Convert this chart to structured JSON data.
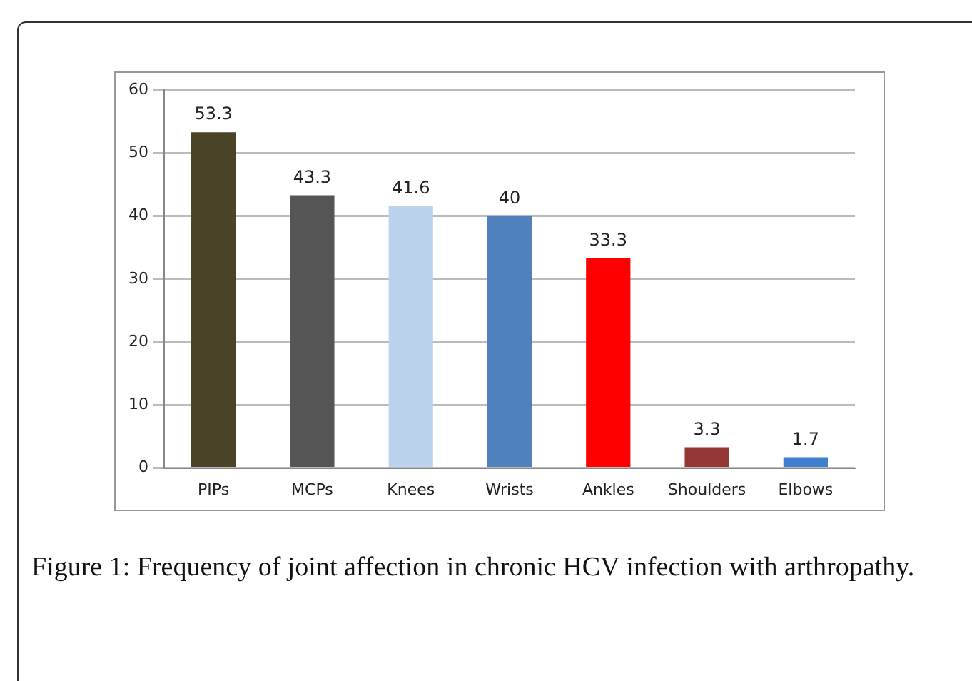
{
  "chart_data": {
    "type": "bar",
    "categories": [
      "PIPs",
      "MCPs",
      "Knees",
      "Wrists",
      "Ankles",
      "Shoulders",
      "Elbows"
    ],
    "values": [
      53.3,
      43.3,
      41.6,
      40,
      33.3,
      3.3,
      1.7
    ],
    "colors": [
      "#4a4328",
      "#555555",
      "#bcd3ee",
      "#4f81bd",
      "#ff0000",
      "#953735",
      "#3f7fcf"
    ],
    "ylim": [
      0,
      60
    ],
    "yticks": [
      0,
      10,
      20,
      30,
      40,
      50,
      60
    ],
    "grid": "y",
    "data_labels": true,
    "annotations": [
      "Figure 1: Frequency of joint affection in chronic HCV infection with arthropathy."
    ]
  }
}
